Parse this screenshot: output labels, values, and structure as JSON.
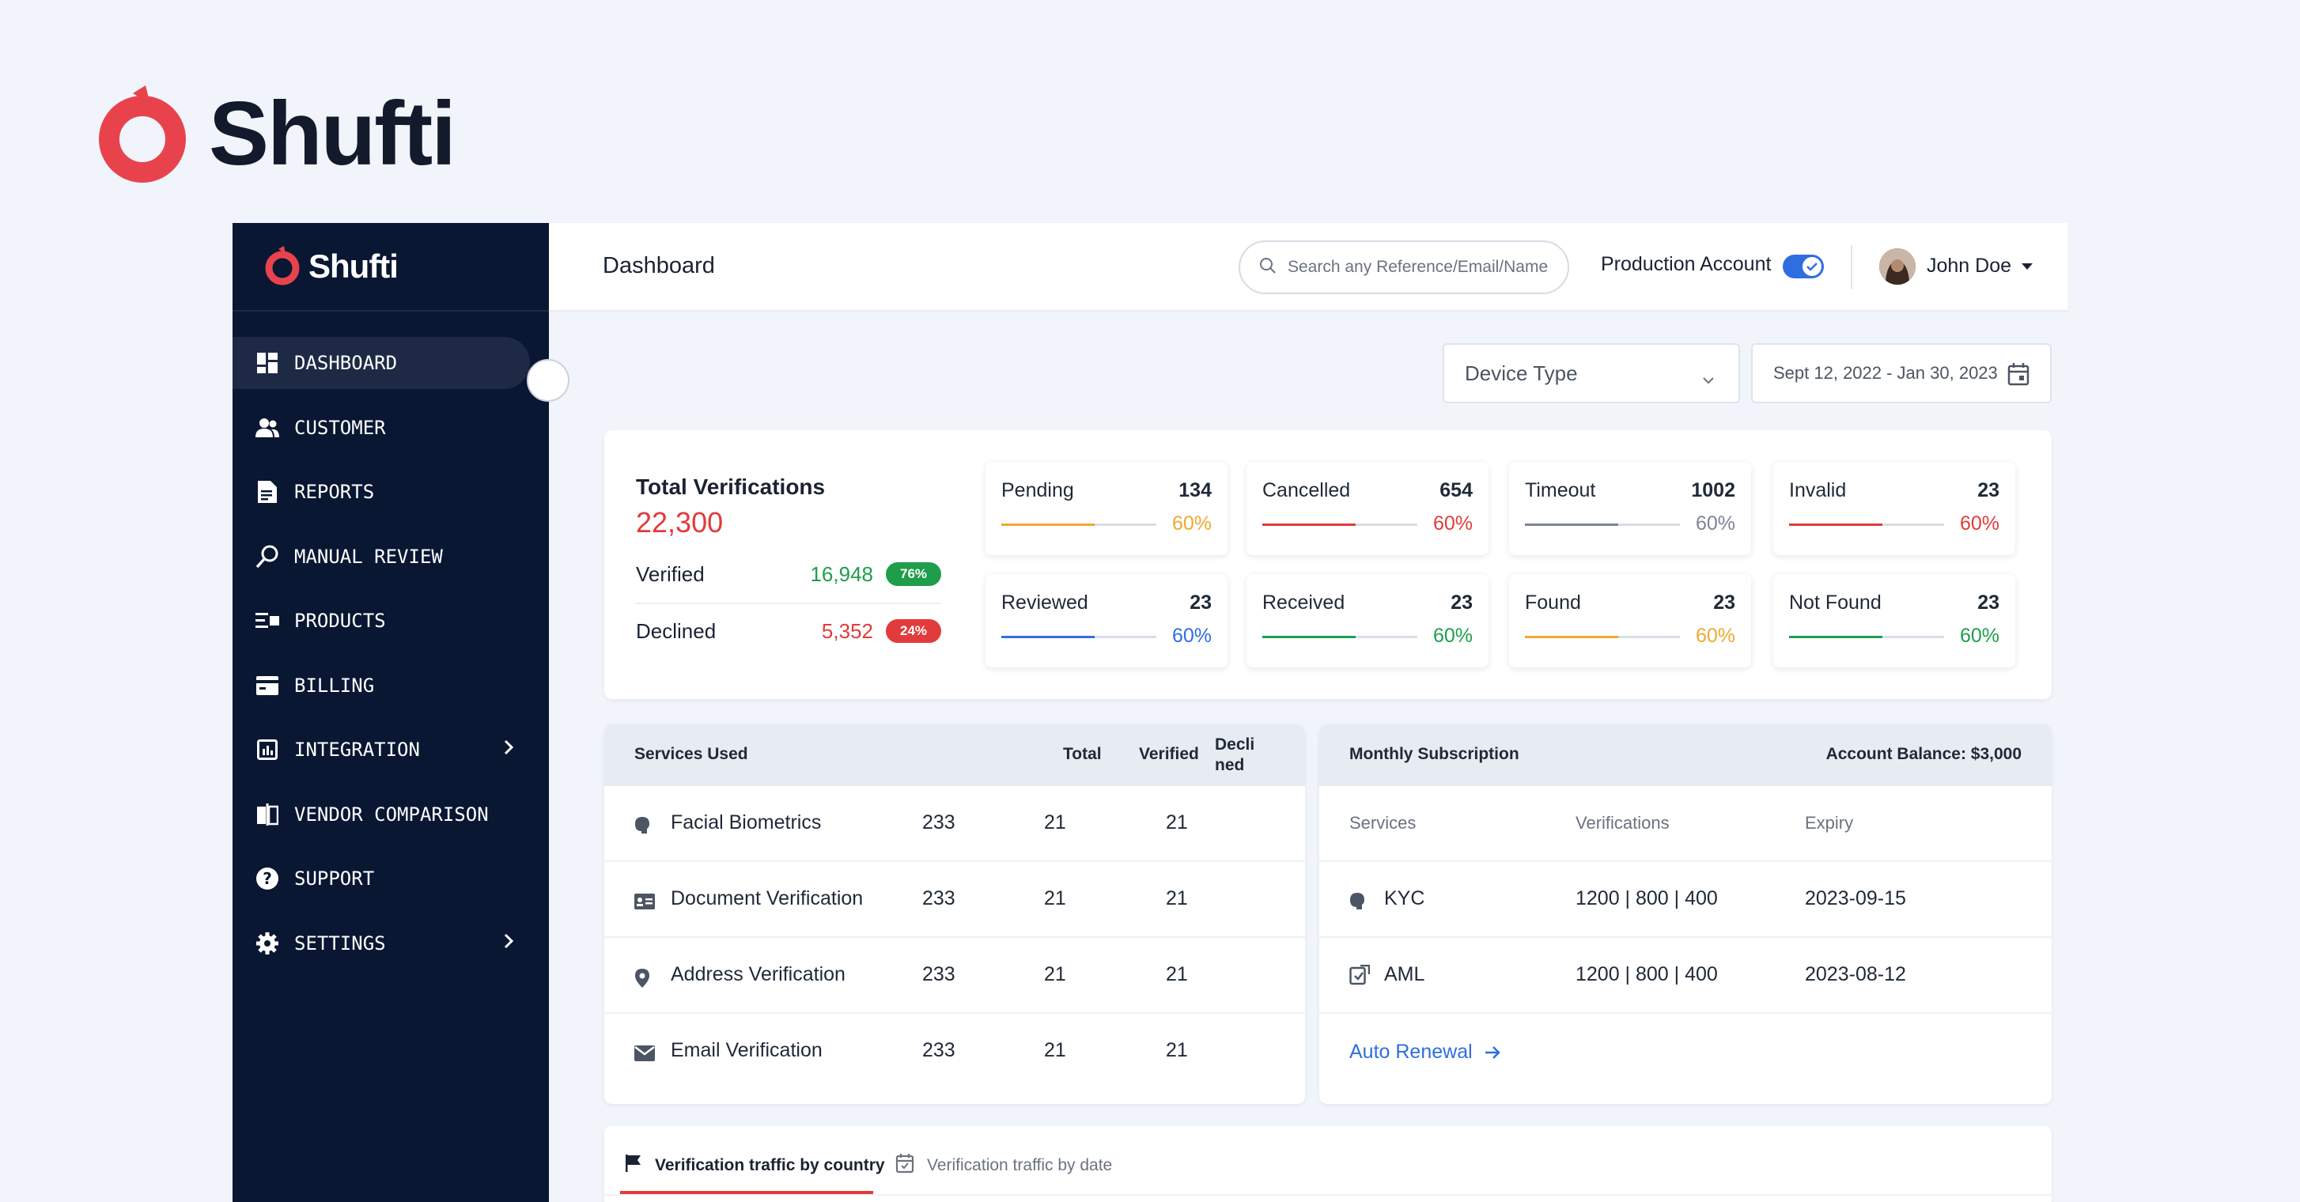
{
  "brand": {
    "name": "Shufti",
    "accent": "#e8434d"
  },
  "sidebar": {
    "logo_text": "Shufti",
    "items": [
      {
        "label": "DASHBOARD",
        "icon": "grid-icon",
        "active": true
      },
      {
        "label": "CUSTOMER",
        "icon": "users-icon"
      },
      {
        "label": "REPORTS",
        "icon": "report-icon"
      },
      {
        "label": "MANUAL REVIEW",
        "icon": "review-icon"
      },
      {
        "label": "PRODUCTS",
        "icon": "products-icon"
      },
      {
        "label": "BILLING",
        "icon": "billing-icon"
      },
      {
        "label": "INTEGRATION",
        "icon": "integration-icon",
        "has_submenu": true
      },
      {
        "label": "VENDOR COMPARISON",
        "icon": "compare-icon"
      },
      {
        "label": "SUPPORT",
        "icon": "help-icon"
      },
      {
        "label": "SETTINGS",
        "icon": "gear-icon",
        "has_submenu": true
      }
    ]
  },
  "header": {
    "title": "Dashboard",
    "search_placeholder": "Search any Reference/Email/Name",
    "account_label": "Production Account",
    "account_toggle_on": true,
    "user_name": "John Doe"
  },
  "filters": {
    "device_type": "Device Type",
    "date_range": "Sept 12, 2022 - Jan 30, 2023"
  },
  "totals": {
    "title": "Total Verifications",
    "total": "22,300",
    "verified_label": "Verified",
    "verified_value": "16,948",
    "verified_pct": "76%",
    "declined_label": "Declined",
    "declined_value": "5,352",
    "declined_pct": "24%"
  },
  "stats": [
    {
      "label": "Pending",
      "count": "134",
      "pct": "60%",
      "color": "#f0a830",
      "fill": 0.6
    },
    {
      "label": "Cancelled",
      "count": "654",
      "pct": "60%",
      "color": "#e23b3b",
      "fill": 0.6
    },
    {
      "label": "Timeout",
      "count": "1002",
      "pct": "60%",
      "color": "#7b8597",
      "fill": 0.6
    },
    {
      "label": "Invalid",
      "count": "23",
      "pct": "60%",
      "color": "#e23b3b",
      "fill": 0.6
    },
    {
      "label": "Reviewed",
      "count": "23",
      "pct": "60%",
      "color": "#2f6ee0",
      "fill": 0.6
    },
    {
      "label": "Received",
      "count": "23",
      "pct": "60%",
      "color": "#1e9e4a",
      "fill": 0.6
    },
    {
      "label": "Found",
      "count": "23",
      "pct": "60%",
      "color": "#f0a830",
      "fill": 0.6
    },
    {
      "label": "Not Found",
      "count": "23",
      "pct": "60%",
      "color": "#1e9e4a",
      "fill": 0.6
    }
  ],
  "services": {
    "headers": {
      "service": "Services Used",
      "total": "Total",
      "verified": "Verified",
      "declined_1": "Decli",
      "declined_2": "ned"
    },
    "rows": [
      {
        "name": "Facial Biometrics",
        "icon": "face-icon",
        "total": "233",
        "verified": "21",
        "declined": "21"
      },
      {
        "name": "Document Verification",
        "icon": "id-card-icon",
        "total": "233",
        "verified": "21",
        "declined": "21"
      },
      {
        "name": "Address Verification",
        "icon": "location-icon",
        "total": "233",
        "verified": "21",
        "declined": "21"
      },
      {
        "name": "Email Verification",
        "icon": "mail-icon",
        "total": "233",
        "verified": "21",
        "declined": "21"
      }
    ]
  },
  "monthly": {
    "title": "Monthly Subscription",
    "balance": "Account Balance: $3,000",
    "headers": {
      "services": "Services",
      "verifications": "Verifications",
      "expiry": "Expiry"
    },
    "rows": [
      {
        "name": "KYC",
        "icon": "face-icon",
        "verifications": "1200 | 800 | 400",
        "expiry": "2023-09-15"
      },
      {
        "name": "AML",
        "icon": "aml-icon",
        "verifications": "1200 | 800 | 400",
        "expiry": "2023-08-12"
      }
    ],
    "auto_renewal": "Auto Renewal"
  },
  "tabs": [
    {
      "label": "Verification traffic by country",
      "icon": "flag-icon",
      "active": true
    },
    {
      "label": "Verification traffic by date",
      "icon": "calendar-icon",
      "active": false
    }
  ],
  "colors": {
    "sidebar_bg": "#0a1733",
    "accent_red": "#e23b3b",
    "accent_blue": "#2f6ee0",
    "green": "#1e9e4a",
    "orange": "#f0a830"
  }
}
